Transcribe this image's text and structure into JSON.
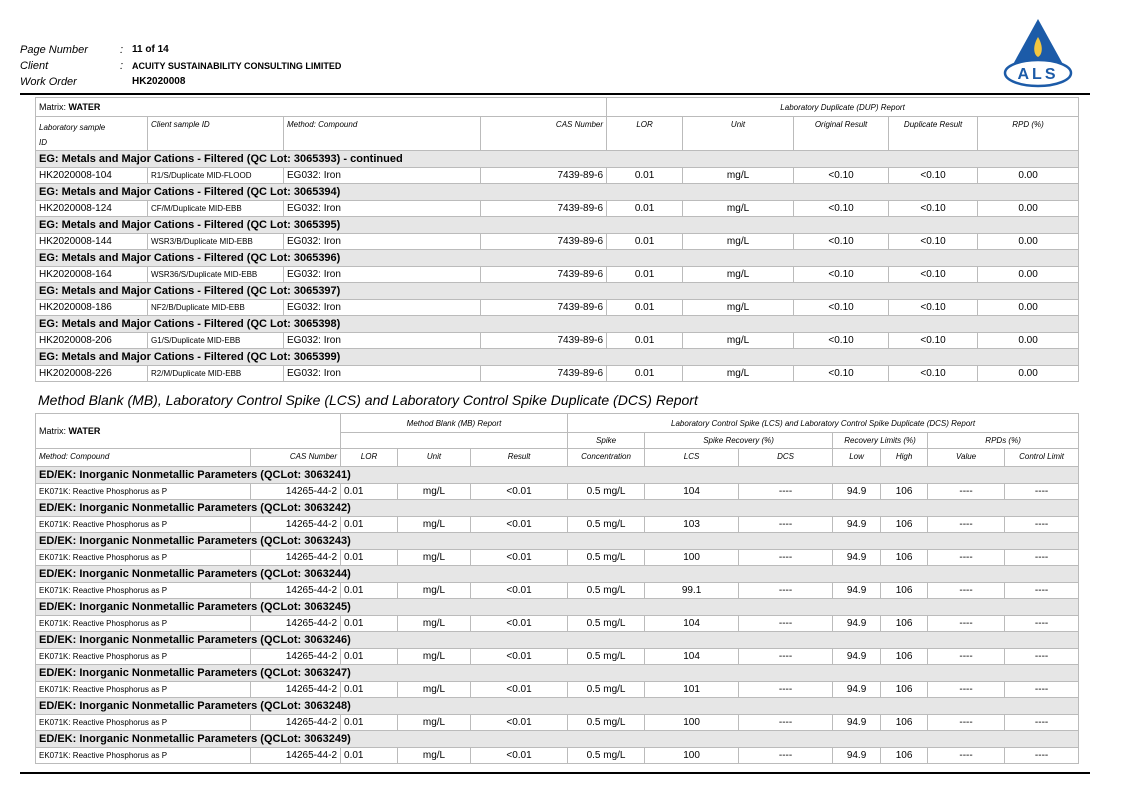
{
  "header": {
    "page_number_label": "Page Number",
    "separator": ":",
    "page_number": "11 of 14",
    "client_label": "Client",
    "client": "ACUITY SUSTAINABILITY CONSULTING LIMITED",
    "work_order_label": "Work Order",
    "work_order": "HK2020008"
  },
  "logo": "ALS",
  "duplicate_report": {
    "matrix_label": "Matrix:",
    "matrix": "WATER",
    "title": "Laboratory Duplicate (DUP) Report",
    "columns": [
      "Laboratory sample ID",
      "Client sample ID",
      "Method: Compound",
      "CAS Number",
      "LOR",
      "Unit",
      "Original Result",
      "Duplicate Result",
      "RPD (%)"
    ],
    "groups": [
      {
        "title": "EG: Metals and Major Cations - Filtered  (QC Lot: 3065393)  - continued",
        "rows": [
          [
            "HK2020008-104",
            "R1/S/Duplicate MID-FLOOD",
            "EG032: Iron",
            "7439-89-6",
            "0.01",
            "mg/L",
            "<0.10",
            "<0.10",
            "0.00"
          ]
        ]
      },
      {
        "title": "EG: Metals and Major Cations - Filtered  (QC Lot: 3065394)",
        "rows": [
          [
            "HK2020008-124",
            "CF/M/Duplicate MID-EBB",
            "EG032: Iron",
            "7439-89-6",
            "0.01",
            "mg/L",
            "<0.10",
            "<0.10",
            "0.00"
          ]
        ]
      },
      {
        "title": "EG: Metals and Major Cations - Filtered  (QC Lot: 3065395)",
        "rows": [
          [
            "HK2020008-144",
            "WSR3/B/Duplicate MID-EBB",
            "EG032: Iron",
            "7439-89-6",
            "0.01",
            "mg/L",
            "<0.10",
            "<0.10",
            "0.00"
          ]
        ]
      },
      {
        "title": "EG: Metals and Major Cations - Filtered  (QC Lot: 3065396)",
        "rows": [
          [
            "HK2020008-164",
            "WSR36/S/Duplicate MID-EBB",
            "EG032: Iron",
            "7439-89-6",
            "0.01",
            "mg/L",
            "<0.10",
            "<0.10",
            "0.00"
          ]
        ]
      },
      {
        "title": "EG: Metals and Major Cations - Filtered  (QC Lot: 3065397)",
        "rows": [
          [
            "HK2020008-186",
            "NF2/B/Duplicate MID-EBB",
            "EG032: Iron",
            "7439-89-6",
            "0.01",
            "mg/L",
            "<0.10",
            "<0.10",
            "0.00"
          ]
        ]
      },
      {
        "title": "EG: Metals and Major Cations - Filtered  (QC Lot: 3065398)",
        "rows": [
          [
            "HK2020008-206",
            "G1/S/Duplicate MID-EBB",
            "EG032: Iron",
            "7439-89-6",
            "0.01",
            "mg/L",
            "<0.10",
            "<0.10",
            "0.00"
          ]
        ]
      },
      {
        "title": "EG: Metals and Major Cations - Filtered  (QC Lot: 3065399)",
        "rows": [
          [
            "HK2020008-226",
            "R2/M/Duplicate MID-EBB",
            "EG032: Iron",
            "7439-89-6",
            "0.01",
            "mg/L",
            "<0.10",
            "<0.10",
            "0.00"
          ]
        ]
      }
    ]
  },
  "blank_spike_report": {
    "heading": "Method Blank (MB), Laboratory Control Spike (LCS) and Laboratory Control Spike Duplicate (DCS) Report",
    "matrix_label": "Matrix:",
    "matrix": "WATER",
    "blank_title": "Method Blank (MB) Report",
    "spike_title": "Laboratory Control Spike (LCS) and Laboratory Control Spike Duplicate (DCS) Report",
    "spike_header": "Spike",
    "recovery_header": "Spike Recovery (%)",
    "limits_header": "Recovery Limits (%)",
    "rpd_header": "RPDs (%)",
    "columns": [
      "Method: Compound",
      "CAS Number",
      "LOR",
      "Unit",
      "Result",
      "Concentration",
      "LCS",
      "DCS",
      "Low",
      "High",
      "Value",
      "Control Limit"
    ],
    "groups": [
      {
        "title": "ED/EK: Inorganic Nonmetallic Parameters  (QCLot: 3063241)",
        "rows": [
          [
            "EK071K: Reactive Phosphorus as P",
            "14265-44-2",
            "0.01",
            "mg/L",
            "<0.01",
            "0.5 mg/L",
            "104",
            "----",
            "94.9",
            "106",
            "----",
            "----"
          ]
        ]
      },
      {
        "title": "ED/EK: Inorganic Nonmetallic Parameters  (QCLot: 3063242)",
        "rows": [
          [
            "EK071K: Reactive Phosphorus as P",
            "14265-44-2",
            "0.01",
            "mg/L",
            "<0.01",
            "0.5 mg/L",
            "103",
            "----",
            "94.9",
            "106",
            "----",
            "----"
          ]
        ]
      },
      {
        "title": "ED/EK: Inorganic Nonmetallic Parameters  (QCLot: 3063243)",
        "rows": [
          [
            "EK071K: Reactive Phosphorus as P",
            "14265-44-2",
            "0.01",
            "mg/L",
            "<0.01",
            "0.5 mg/L",
            "100",
            "----",
            "94.9",
            "106",
            "----",
            "----"
          ]
        ]
      },
      {
        "title": "ED/EK: Inorganic Nonmetallic Parameters  (QCLot: 3063244)",
        "rows": [
          [
            "EK071K: Reactive Phosphorus as P",
            "14265-44-2",
            "0.01",
            "mg/L",
            "<0.01",
            "0.5 mg/L",
            "99.1",
            "----",
            "94.9",
            "106",
            "----",
            "----"
          ]
        ]
      },
      {
        "title": "ED/EK: Inorganic Nonmetallic Parameters  (QCLot: 3063245)",
        "rows": [
          [
            "EK071K: Reactive Phosphorus as P",
            "14265-44-2",
            "0.01",
            "mg/L",
            "<0.01",
            "0.5 mg/L",
            "104",
            "----",
            "94.9",
            "106",
            "----",
            "----"
          ]
        ]
      },
      {
        "title": "ED/EK: Inorganic Nonmetallic Parameters  (QCLot: 3063246)",
        "rows": [
          [
            "EK071K: Reactive Phosphorus as P",
            "14265-44-2",
            "0.01",
            "mg/L",
            "<0.01",
            "0.5 mg/L",
            "104",
            "----",
            "94.9",
            "106",
            "----",
            "----"
          ]
        ]
      },
      {
        "title": "ED/EK: Inorganic Nonmetallic Parameters  (QCLot: 3063247)",
        "rows": [
          [
            "EK071K: Reactive Phosphorus as P",
            "14265-44-2",
            "0.01",
            "mg/L",
            "<0.01",
            "0.5 mg/L",
            "101",
            "----",
            "94.9",
            "106",
            "----",
            "----"
          ]
        ]
      },
      {
        "title": "ED/EK: Inorganic Nonmetallic Parameters  (QCLot: 3063248)",
        "rows": [
          [
            "EK071K: Reactive Phosphorus as P",
            "14265-44-2",
            "0.01",
            "mg/L",
            "<0.01",
            "0.5 mg/L",
            "100",
            "----",
            "94.9",
            "106",
            "----",
            "----"
          ]
        ]
      },
      {
        "title": "ED/EK: Inorganic Nonmetallic Parameters  (QCLot: 3063249)",
        "rows": [
          [
            "EK071K: Reactive Phosphorus as P",
            "14265-44-2",
            "0.01",
            "mg/L",
            "<0.01",
            "0.5 mg/L",
            "100",
            "----",
            "94.9",
            "106",
            "----",
            "----"
          ]
        ]
      }
    ]
  }
}
